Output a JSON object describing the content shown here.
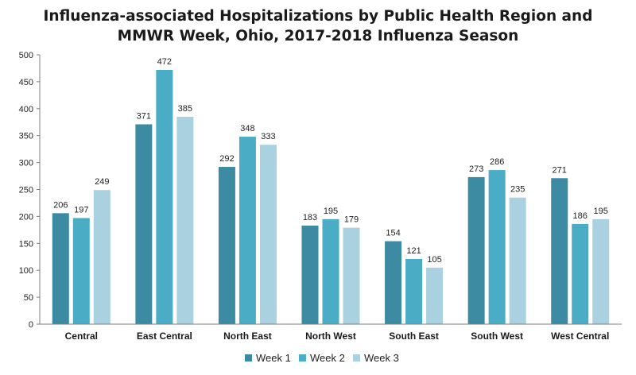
{
  "chart_data": {
    "type": "bar",
    "title_lines": [
      "Influenza-associated Hospitalizations by Public Health Region and",
      "MMWR Week, Ohio, 2017-2018 Influenza Season"
    ],
    "categories": [
      "Central",
      "East Central",
      "North East",
      "North West",
      "South East",
      "South West",
      "West Central"
    ],
    "series": [
      {
        "name": "Week 1",
        "color": "#3d8aa3",
        "values": [
          206,
          371,
          292,
          183,
          154,
          273,
          271
        ]
      },
      {
        "name": "Week 2",
        "color": "#4bacc6",
        "values": [
          197,
          472,
          348,
          195,
          121,
          286,
          186
        ]
      },
      {
        "name": "Week 3",
        "color": "#a9d1df",
        "values": [
          249,
          385,
          333,
          179,
          105,
          235,
          195
        ]
      }
    ],
    "ylim": [
      0,
      500
    ],
    "yticks": [
      0,
      50,
      100,
      150,
      200,
      250,
      300,
      350,
      400,
      450,
      500
    ],
    "xlabel": "",
    "ylabel": "",
    "grid": false,
    "legend_position": "bottom",
    "axis_color": "#7f7f7f"
  }
}
